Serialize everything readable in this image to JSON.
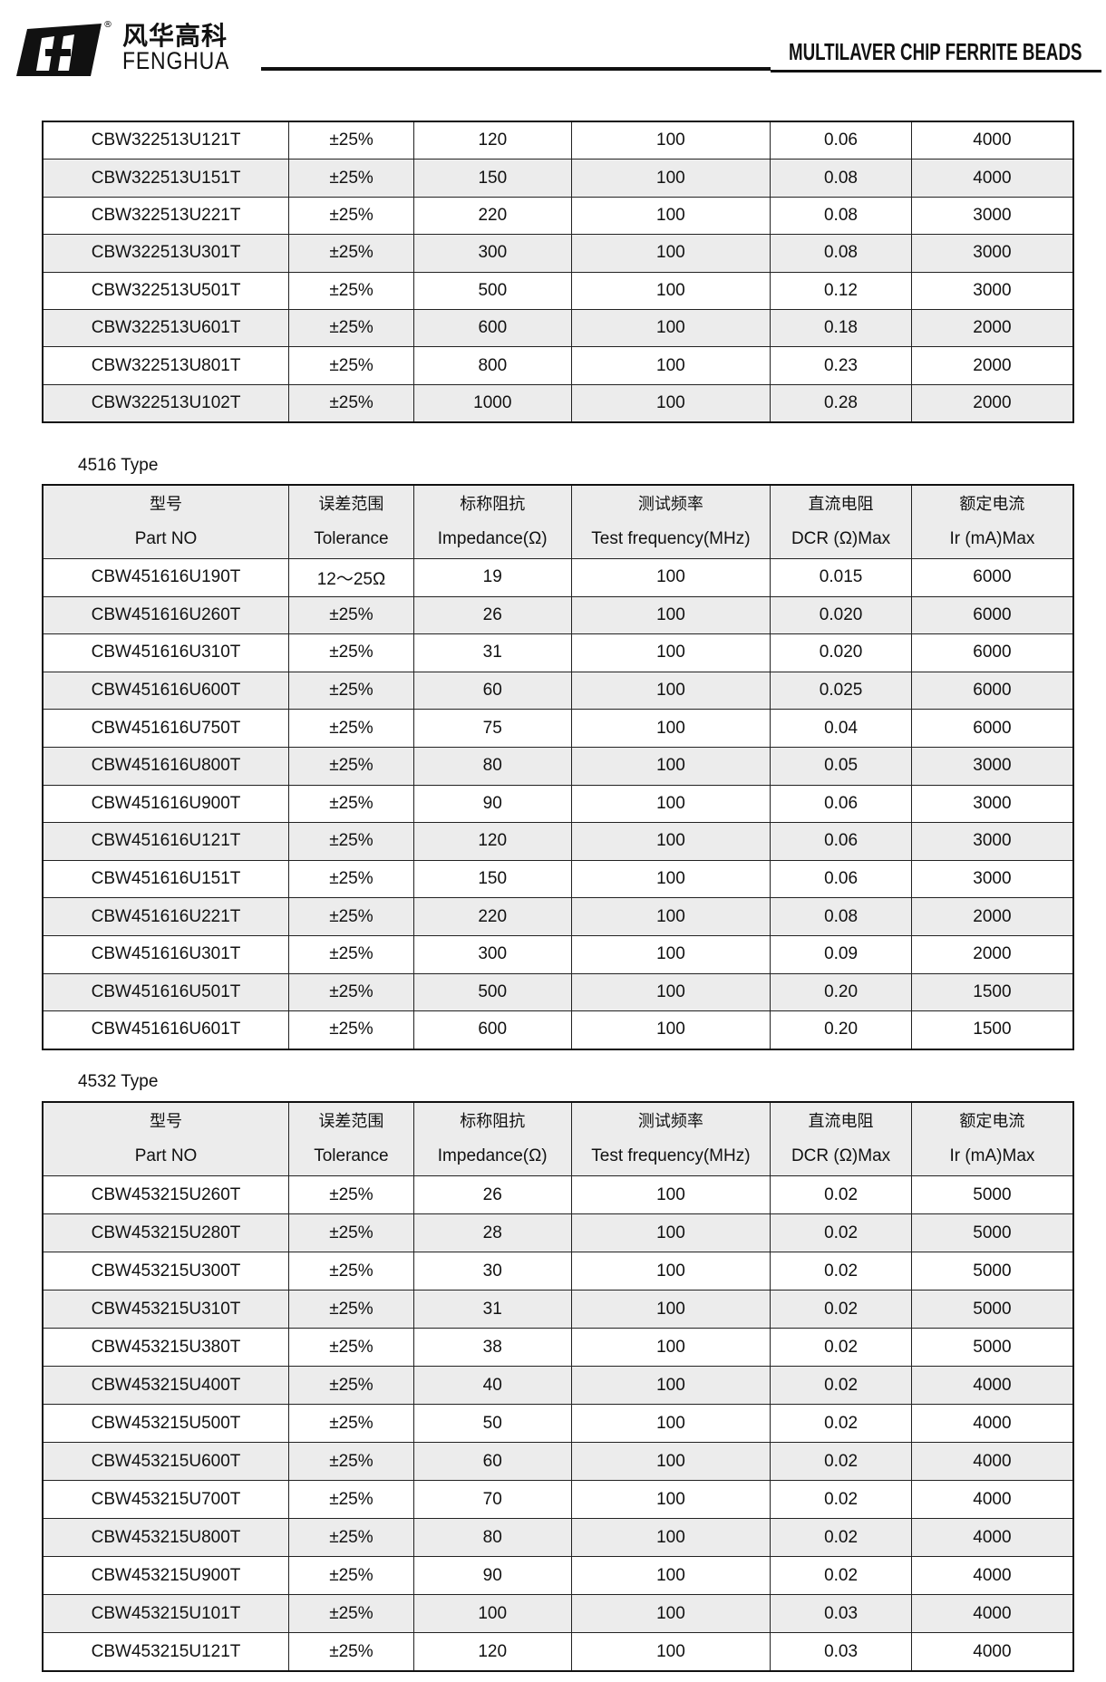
{
  "header": {
    "brand_cn": "风华高科",
    "brand_en": "FENGHUA",
    "doc_title": "MULTILAVER CHIP FERRITE BEADS"
  },
  "columns": [
    {
      "cn": "型号",
      "en": "Part NO"
    },
    {
      "cn": "误差范围",
      "en": "Tolerance"
    },
    {
      "cn": "标称阻抗",
      "en": "Impedance(Ω)"
    },
    {
      "cn": "测试频率",
      "en": "Test frequency(MHz)"
    },
    {
      "cn": "直流电阻",
      "en": "DCR (Ω)Max"
    },
    {
      "cn": "额定电流",
      "en": "Ir (mA)Max"
    }
  ],
  "tables": [
    {
      "label": "",
      "rows": [
        [
          "CBW322513U121T",
          "±25%",
          "120",
          "100",
          "0.06",
          "4000"
        ],
        [
          "CBW322513U151T",
          "±25%",
          "150",
          "100",
          "0.08",
          "4000"
        ],
        [
          "CBW322513U221T",
          "±25%",
          "220",
          "100",
          "0.08",
          "3000"
        ],
        [
          "CBW322513U301T",
          "±25%",
          "300",
          "100",
          "0.08",
          "3000"
        ],
        [
          "CBW322513U501T",
          "±25%",
          "500",
          "100",
          "0.12",
          "3000"
        ],
        [
          "CBW322513U601T",
          "±25%",
          "600",
          "100",
          "0.18",
          "2000"
        ],
        [
          "CBW322513U801T",
          "±25%",
          "800",
          "100",
          "0.23",
          "2000"
        ],
        [
          "CBW322513U102T",
          "±25%",
          "1000",
          "100",
          "0.28",
          "2000"
        ]
      ]
    },
    {
      "label": "4516 Type",
      "rows": [
        [
          "CBW451616U190T",
          "12～25Ω",
          "19",
          "100",
          "0.015",
          "6000"
        ],
        [
          "CBW451616U260T",
          "±25%",
          "26",
          "100",
          "0.020",
          "6000"
        ],
        [
          "CBW451616U310T",
          "±25%",
          "31",
          "100",
          "0.020",
          "6000"
        ],
        [
          "CBW451616U600T",
          "±25%",
          "60",
          "100",
          "0.025",
          "6000"
        ],
        [
          "CBW451616U750T",
          "±25%",
          "75",
          "100",
          "0.04",
          "6000"
        ],
        [
          "CBW451616U800T",
          "±25%",
          "80",
          "100",
          "0.05",
          "3000"
        ],
        [
          "CBW451616U900T",
          "±25%",
          "90",
          "100",
          "0.06",
          "3000"
        ],
        [
          "CBW451616U121T",
          "±25%",
          "120",
          "100",
          "0.06",
          "3000"
        ],
        [
          "CBW451616U151T",
          "±25%",
          "150",
          "100",
          "0.06",
          "3000"
        ],
        [
          "CBW451616U221T",
          "±25%",
          "220",
          "100",
          "0.08",
          "2000"
        ],
        [
          "CBW451616U301T",
          "±25%",
          "300",
          "100",
          "0.09",
          "2000"
        ],
        [
          "CBW451616U501T",
          "±25%",
          "500",
          "100",
          "0.20",
          "1500"
        ],
        [
          "CBW451616U601T",
          "±25%",
          "600",
          "100",
          "0.20",
          "1500"
        ]
      ]
    },
    {
      "label": "4532 Type",
      "rows": [
        [
          "CBW453215U260T",
          "±25%",
          "26",
          "100",
          "0.02",
          "5000"
        ],
        [
          "CBW453215U280T",
          "±25%",
          "28",
          "100",
          "0.02",
          "5000"
        ],
        [
          "CBW453215U300T",
          "±25%",
          "30",
          "100",
          "0.02",
          "5000"
        ],
        [
          "CBW453215U310T",
          "±25%",
          "31",
          "100",
          "0.02",
          "5000"
        ],
        [
          "CBW453215U380T",
          "±25%",
          "38",
          "100",
          "0.02",
          "5000"
        ],
        [
          "CBW453215U400T",
          "±25%",
          "40",
          "100",
          "0.02",
          "4000"
        ],
        [
          "CBW453215U500T",
          "±25%",
          "50",
          "100",
          "0.02",
          "4000"
        ],
        [
          "CBW453215U600T",
          "±25%",
          "60",
          "100",
          "0.02",
          "4000"
        ],
        [
          "CBW453215U700T",
          "±25%",
          "70",
          "100",
          "0.02",
          "4000"
        ],
        [
          "CBW453215U800T",
          "±25%",
          "80",
          "100",
          "0.02",
          "4000"
        ],
        [
          "CBW453215U900T",
          "±25%",
          "90",
          "100",
          "0.02",
          "4000"
        ],
        [
          "CBW453215U101T",
          "±25%",
          "100",
          "100",
          "0.03",
          "4000"
        ],
        [
          "CBW453215U121T",
          "±25%",
          "120",
          "100",
          "0.03",
          "4000"
        ]
      ]
    }
  ]
}
